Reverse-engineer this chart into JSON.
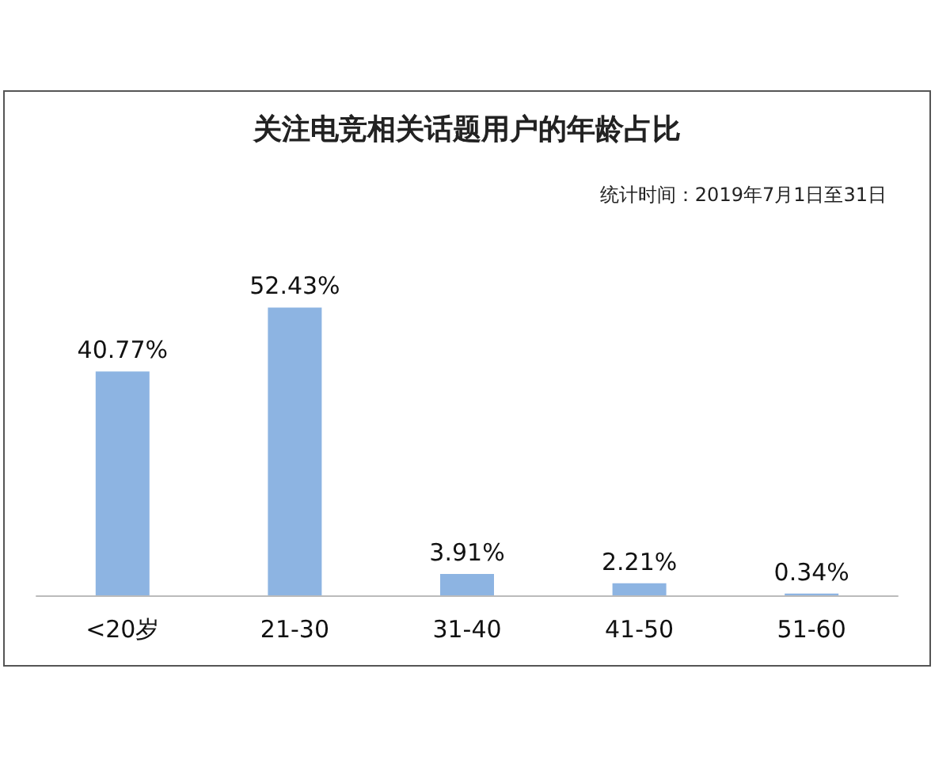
{
  "chart_data": {
    "type": "bar",
    "title": "关注电竞相关话题用户的年龄占比",
    "subtitle": "统计时间：2019年7月1日至31日",
    "categories": [
      "<20岁",
      "21-30",
      "31-40",
      "41-50",
      "51-60"
    ],
    "values": [
      40.77,
      52.43,
      3.91,
      2.21,
      0.34
    ],
    "value_labels": [
      "40.77%",
      "52.43%",
      "3.91%",
      "2.21%",
      "0.34%"
    ],
    "color": "#8db4e2"
  }
}
